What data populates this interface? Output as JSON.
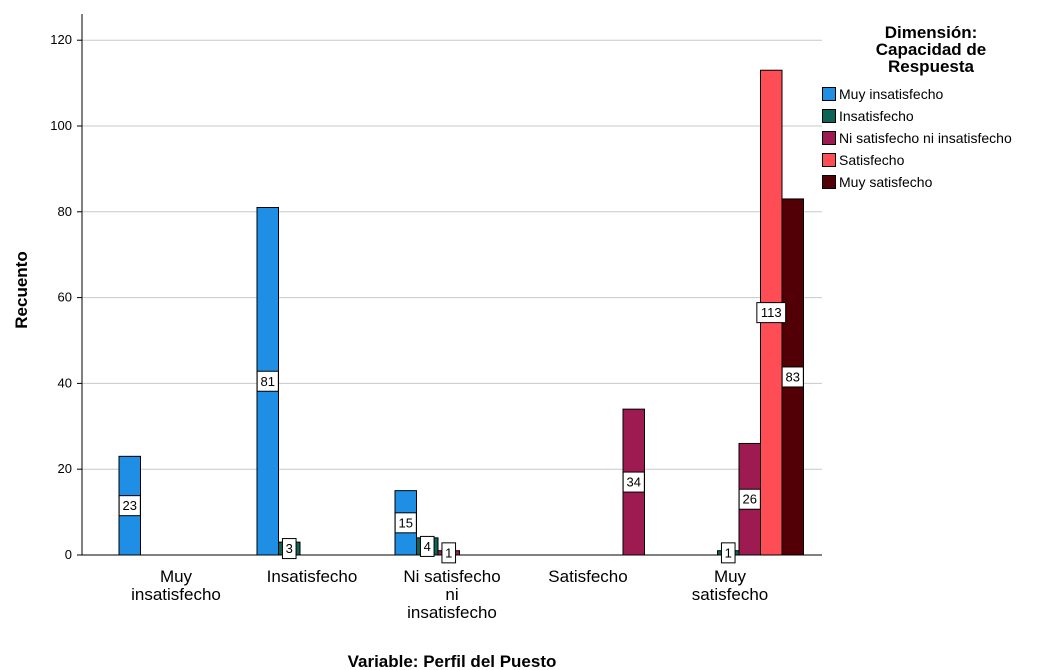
{
  "chart_data": {
    "type": "bar",
    "xlabel": "Variable: Perfil del Puesto",
    "ylabel": "Recuento",
    "ylim": [
      0,
      126
    ],
    "yticks": [
      0,
      20,
      40,
      60,
      80,
      100,
      120
    ],
    "grid": "horizontal",
    "categories": [
      [
        "Muy",
        "insatisfecho"
      ],
      [
        "Insatisfecho"
      ],
      [
        "Ni satisfecho",
        "ni",
        "insatisfecho"
      ],
      [
        "Satisfecho"
      ],
      [
        "Muy",
        "satisfecho"
      ]
    ],
    "legend": {
      "title_lines": [
        "Dimensión:",
        "Capacidad de",
        "Respuesta"
      ],
      "position": "right"
    },
    "series": [
      {
        "name": "Muy insatisfecho",
        "color": "#1F8FE5",
        "values": [
          23,
          81,
          15,
          null,
          null
        ]
      },
      {
        "name": "Insatisfecho",
        "color": "#0E6357",
        "values": [
          null,
          3,
          4,
          null,
          1
        ]
      },
      {
        "name": "Ni satisfecho ni insatisfecho",
        "color": "#9E1B52",
        "values": [
          null,
          null,
          1,
          34,
          26
        ]
      },
      {
        "name": "Satisfecho",
        "color": "#FF4D55",
        "values": [
          null,
          null,
          null,
          null,
          113
        ]
      },
      {
        "name": "Muy satisfecho",
        "color": "#520005",
        "values": [
          null,
          null,
          null,
          null,
          83
        ]
      }
    ]
  }
}
